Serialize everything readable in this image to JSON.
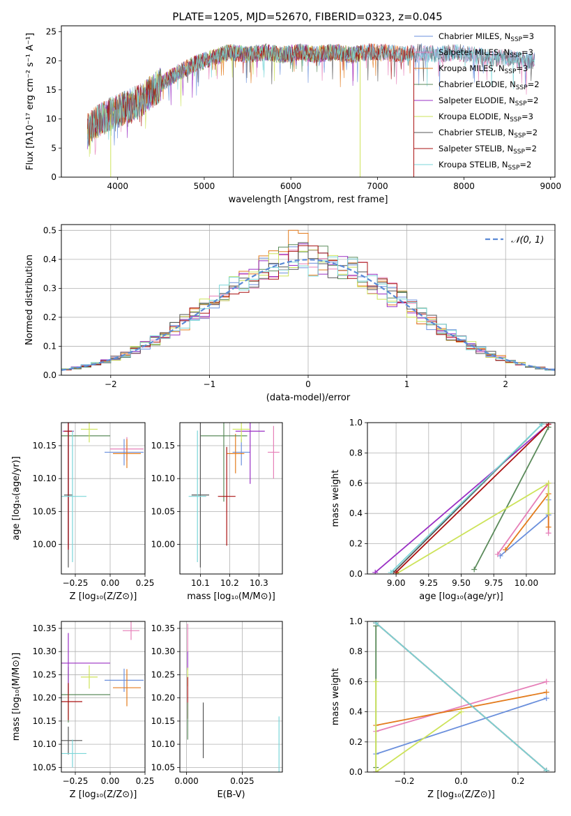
{
  "title": "PLATE=1205, MJD=52670, FIBERID=0323, z=0.045",
  "colors": {
    "chabrier_miles": "#6a8fdc",
    "salpeter_miles": "#e67fb8",
    "kroupa_miles": "#e37b1c",
    "chabrier_elodie": "#5a8a5a",
    "salpeter_elodie": "#9a2fc4",
    "kroupa_elodie": "#cde35a",
    "chabrier_stelib": "#555555",
    "salpeter_stelib": "#aa1111",
    "kroupa_stelib": "#7ad6d8",
    "normal_curve": "#5b8ad6",
    "grid": "#b0b0b0"
  },
  "legend_entries": [
    {
      "base": "Chabrier MILES, N",
      "sub": "SSP",
      "tail": "=3",
      "color_key": "chabrier_miles"
    },
    {
      "base": "Salpeter MILES, N",
      "sub": "SSP",
      "tail": "=3",
      "color_key": "salpeter_miles"
    },
    {
      "base": "Kroupa MILES, N",
      "sub": "SSP",
      "tail": "=3",
      "color_key": "kroupa_miles"
    },
    {
      "base": "Chabrier ELODIE, N",
      "sub": "SSP",
      "tail": "=2",
      "color_key": "chabrier_elodie"
    },
    {
      "base": "Salpeter ELODIE, N",
      "sub": "SSP",
      "tail": "=2",
      "color_key": "salpeter_elodie"
    },
    {
      "base": "Kroupa ELODIE, N",
      "sub": "SSP",
      "tail": "=3",
      "color_key": "kroupa_elodie"
    },
    {
      "base": "Chabrier STELIB, N",
      "sub": "SSP",
      "tail": "=2",
      "color_key": "chabrier_stelib"
    },
    {
      "base": "Salpeter STELIB, N",
      "sub": "SSP",
      "tail": "=2",
      "color_key": "salpeter_stelib"
    },
    {
      "base": "Kroupa STELIB, N",
      "sub": "SSP",
      "tail": "=2",
      "color_key": "kroupa_stelib"
    }
  ],
  "chart_data": [
    {
      "id": "spectrum",
      "type": "line",
      "xlabel": "wavelength [Angstrom, rest frame]",
      "ylabel": "Flux [fλ10⁻¹⁷ erg cm⁻² s⁻¹ A⁻¹]",
      "xlim": [
        3350,
        9050
      ],
      "ylim": [
        0,
        26
      ],
      "xticks": [
        4000,
        5000,
        6000,
        7000,
        8000,
        9000
      ],
      "yticks": [
        0,
        5,
        10,
        15,
        20,
        25
      ],
      "grid": false,
      "legend_position": "upper right",
      "continuum": {
        "x": [
          3650,
          3800,
          3950,
          4100,
          4300,
          4500,
          4700,
          4900,
          5100,
          5300,
          5500,
          5700,
          5900,
          6100,
          6300,
          6500,
          6700,
          6900,
          7100,
          7300,
          7500,
          7700,
          7900,
          8100,
          8300,
          8500,
          8700,
          8820
        ],
        "y": [
          8,
          10,
          11,
          12,
          13.5,
          16,
          18,
          19.5,
          20.5,
          21.5,
          21,
          21.5,
          21,
          21.5,
          21,
          21.5,
          21,
          21.5,
          21.5,
          21,
          21.5,
          21,
          21.5,
          21,
          20.5,
          20.5,
          20,
          20
        ]
      },
      "series_extent": [
        {
          "key": "chabrier_miles",
          "x_end": 8820
        },
        {
          "key": "salpeter_miles",
          "x_end": 8820
        },
        {
          "key": "kroupa_miles",
          "x_end": 7420
        },
        {
          "key": "chabrier_elodie",
          "x_end": 6800
        },
        {
          "key": "salpeter_elodie",
          "x_end": 6800
        },
        {
          "key": "kroupa_elodie",
          "x_end": 6800
        },
        {
          "key": "chabrier_stelib",
          "x_end": 8820
        },
        {
          "key": "salpeter_stelib",
          "x_end": 7420
        },
        {
          "key": "kroupa_stelib",
          "x_end": 8820
        }
      ],
      "dropouts": [
        {
          "x": 5335,
          "key": "chabrier_stelib"
        },
        {
          "x": 6800,
          "key": "kroupa_elodie"
        },
        {
          "x": 7420,
          "key": "salpeter_stelib"
        },
        {
          "x": 3920,
          "key": "kroupa_elodie"
        }
      ]
    },
    {
      "id": "residual_hist",
      "type": "histogram",
      "xlabel": "(data-model)/error",
      "ylabel": "Normed distribution",
      "xlim": [
        -2.5,
        2.5
      ],
      "ylim": [
        0,
        0.52
      ],
      "xticks": [
        -2,
        -1,
        0,
        1,
        2
      ],
      "yticks": [
        0.0,
        0.1,
        0.2,
        0.3,
        0.4,
        0.5
      ],
      "grid": true,
      "legend": "𝒩(0, 1)",
      "legend_position": "upper right",
      "bin_width": 0.1,
      "model_curve": "normal(0,1)",
      "peak_bins": [
        {
          "x": -0.2,
          "key": "kroupa_miles",
          "height": 0.5
        },
        {
          "x": -0.1,
          "key": "kroupa_miles",
          "height": 0.49
        }
      ]
    },
    {
      "id": "age_vs_Z",
      "type": "errorbar",
      "xlabel": "Z [log₁₀(Z/Z⊙)]",
      "ylabel": "age  [log₁₀(age/yr)]",
      "xlim": [
        -0.35,
        0.25
      ],
      "ylim": [
        9.955,
        10.185
      ],
      "xticks": [
        -0.25,
        0.0,
        0.25
      ],
      "yticks": [
        10.0,
        10.05,
        10.1,
        10.15
      ],
      "grid": true,
      "points": [
        {
          "key": "chabrier_miles",
          "x": 0.1,
          "y": 10.14,
          "xerr": 0.14,
          "yerr": 0.02
        },
        {
          "key": "salpeter_miles",
          "x": 0.12,
          "y": 10.145,
          "xerr": 0.12,
          "yerr": 0.018
        },
        {
          "key": "kroupa_miles",
          "x": 0.12,
          "y": 10.138,
          "xerr": 0.1,
          "yerr": 0.022
        },
        {
          "key": "chabrier_elodie",
          "x": -0.3,
          "y": 10.165,
          "xerr": 0.3,
          "yerr": 0.17
        },
        {
          "key": "salpeter_elodie",
          "x": -0.3,
          "y": 10.172,
          "xerr": 0.04,
          "yerr": 0.18
        },
        {
          "key": "kroupa_elodie",
          "x": -0.15,
          "y": 10.175,
          "xerr": 0.06,
          "yerr": 0.02
        },
        {
          "key": "chabrier_stelib",
          "x": -0.3,
          "y": 10.075,
          "xerr": 0.03,
          "yerr": 0.11
        },
        {
          "key": "salpeter_stelib",
          "x": -0.3,
          "y": 10.172,
          "xerr": 0.03,
          "yerr": 0.18
        },
        {
          "key": "kroupa_stelib",
          "x": -0.27,
          "y": 10.073,
          "xerr": 0.1,
          "yerr": 0.1
        }
      ]
    },
    {
      "id": "age_vs_mass",
      "type": "errorbar",
      "xlabel": "mass [log₁₀(M/M⊙)]",
      "ylabel": "",
      "xlim": [
        10.03,
        10.38
      ],
      "ylim": [
        9.955,
        10.185
      ],
      "xticks": [
        10.1,
        10.2,
        10.3
      ],
      "yticks": [
        10.0,
        10.05,
        10.1,
        10.15
      ],
      "grid": true,
      "points": [
        {
          "key": "chabrier_miles",
          "x": 10.24,
          "y": 10.14,
          "xerr": 0.03,
          "yerr": 0.02
        },
        {
          "key": "salpeter_miles",
          "x": 10.35,
          "y": 10.14,
          "xerr": 0.02,
          "yerr": 0.04
        },
        {
          "key": "kroupa_miles",
          "x": 10.22,
          "y": 10.138,
          "xerr": 0.03,
          "yerr": 0.03
        },
        {
          "key": "chabrier_elodie",
          "x": 10.18,
          "y": 10.165,
          "xerr": 0.08,
          "yerr": 0.1
        },
        {
          "key": "salpeter_elodie",
          "x": 10.27,
          "y": 10.172,
          "xerr": 0.05,
          "yerr": 0.08
        },
        {
          "key": "kroupa_elodie",
          "x": 10.24,
          "y": 10.175,
          "xerr": 0.03,
          "yerr": 0.02
        },
        {
          "key": "chabrier_stelib",
          "x": 10.1,
          "y": 10.075,
          "xerr": 0.03,
          "yerr": 0.11
        },
        {
          "key": "salpeter_stelib",
          "x": 10.19,
          "y": 10.073,
          "xerr": 0.03,
          "yerr": 0.075
        },
        {
          "key": "kroupa_stelib",
          "x": 10.09,
          "y": 10.073,
          "xerr": 0.03,
          "yerr": 0.1
        }
      ]
    },
    {
      "id": "massweight_vs_age",
      "type": "line",
      "xlabel": "age  [log₁₀(age/yr)]",
      "ylabel": "mass weight",
      "xlim": [
        8.78,
        10.22
      ],
      "ylim": [
        0,
        1
      ],
      "xticks": [
        9.0,
        9.25,
        9.5,
        9.75,
        10.0
      ],
      "yticks": [
        0.0,
        0.2,
        0.4,
        0.6,
        0.8,
        1.0
      ],
      "grid": true,
      "series": [
        {
          "key": "chabrier_miles",
          "x": [
            9.8,
            10.17,
            10.17
          ],
          "y": [
            0.12,
            0.39,
            0.49
          ]
        },
        {
          "key": "salpeter_miles",
          "x": [
            9.78,
            10.17,
            10.17
          ],
          "y": [
            0.13,
            0.6,
            0.27
          ]
        },
        {
          "key": "kroupa_miles",
          "x": [
            9.84,
            10.17,
            10.17
          ],
          "y": [
            0.16,
            0.53,
            0.31
          ]
        },
        {
          "key": "chabrier_elodie",
          "x": [
            9.6,
            10.17
          ],
          "y": [
            0.03,
            0.97
          ]
        },
        {
          "key": "salpeter_elodie",
          "x": [
            8.84,
            10.17
          ],
          "y": [
            0.01,
            0.99
          ]
        },
        {
          "key": "kroupa_elodie",
          "x": [
            9.0,
            10.17,
            10.17
          ],
          "y": [
            0.0,
            0.6,
            0.4
          ]
        },
        {
          "key": "chabrier_stelib",
          "x": [
            8.98,
            10.12
          ],
          "y": [
            0.01,
            0.99
          ]
        },
        {
          "key": "salpeter_stelib",
          "x": [
            9.0,
            10.17
          ],
          "y": [
            0.01,
            0.99
          ]
        },
        {
          "key": "kroupa_stelib",
          "x": [
            8.96,
            10.12
          ],
          "y": [
            0.01,
            0.99
          ]
        }
      ]
    },
    {
      "id": "mass_vs_Z",
      "type": "errorbar",
      "xlabel": "Z [log₁₀(Z/Z⊙)]",
      "ylabel": "mass [log₁₀(M/M⊙)]",
      "xlim": [
        -0.35,
        0.25
      ],
      "ylim": [
        10.04,
        10.365
      ],
      "xticks": [
        -0.25,
        0.0,
        0.25
      ],
      "yticks": [
        10.05,
        10.1,
        10.15,
        10.2,
        10.25,
        10.3,
        10.35
      ],
      "grid": true,
      "points": [
        {
          "key": "chabrier_miles",
          "x": 0.1,
          "y": 10.238,
          "xerr": 0.14,
          "yerr": 0.025
        },
        {
          "key": "salpeter_miles",
          "x": 0.15,
          "y": 10.345,
          "xerr": 0.06,
          "yerr": 0.02
        },
        {
          "key": "kroupa_miles",
          "x": 0.12,
          "y": 10.222,
          "xerr": 0.1,
          "yerr": 0.04
        },
        {
          "key": "chabrier_elodie",
          "x": -0.3,
          "y": 10.207,
          "xerr": 0.3,
          "yerr": 0.06
        },
        {
          "key": "salpeter_elodie",
          "x": -0.3,
          "y": 10.275,
          "xerr": 0.3,
          "yerr": 0.065
        },
        {
          "key": "kroupa_elodie",
          "x": -0.15,
          "y": 10.245,
          "xerr": 0.06,
          "yerr": 0.025
        },
        {
          "key": "chabrier_stelib",
          "x": -0.3,
          "y": 10.108,
          "xerr": 0.1,
          "yerr": 0.03
        },
        {
          "key": "salpeter_stelib",
          "x": -0.3,
          "y": 10.192,
          "xerr": 0.1,
          "yerr": 0.04
        },
        {
          "key": "kroupa_stelib",
          "x": -0.27,
          "y": 10.08,
          "xerr": 0.1,
          "yerr": 0.03
        }
      ]
    },
    {
      "id": "mass_vs_ebv",
      "type": "errorbar",
      "xlabel": "E(B-V)",
      "ylabel": "",
      "xlim": [
        -0.003,
        0.043
      ],
      "ylim": [
        10.04,
        10.365
      ],
      "xticks": [
        0.0,
        0.025
      ],
      "xtick_labels": [
        "0.000",
        "0.025"
      ],
      "yticks": [
        10.05,
        10.1,
        10.15,
        10.2,
        10.25,
        10.3,
        10.35
      ],
      "grid": true,
      "points": [
        {
          "key": "salpeter_miles",
          "x": 0.0005,
          "y": 10.33,
          "xerr": 0,
          "yerr": 0.03
        },
        {
          "key": "salpeter_elodie",
          "x": 0.0005,
          "y": 10.28,
          "xerr": 0,
          "yerr": 0.02
        },
        {
          "key": "kroupa_elodie",
          "x": 0.0005,
          "y": 10.245,
          "xerr": 0,
          "yerr": 0.02
        },
        {
          "key": "salpeter_stelib",
          "x": 0.0005,
          "y": 10.2,
          "xerr": 0,
          "yerr": 0.045
        },
        {
          "key": "chabrier_stelib",
          "x": 0.0075,
          "y": 10.13,
          "xerr": 0,
          "yerr": 0.06
        },
        {
          "key": "kroupa_stelib",
          "x": 0.0415,
          "y": 10.1,
          "xerr": 0,
          "yerr": 0.06
        },
        {
          "key": "chabrier_elodie",
          "x": 0.0005,
          "y": 10.15,
          "xerr": 0,
          "yerr": 0.04
        }
      ]
    },
    {
      "id": "massweight_vs_Z",
      "type": "line",
      "xlabel": "Z [log₁₀(Z/Z⊙)]",
      "ylabel": "mass weight",
      "xlim": [
        -0.33,
        0.33
      ],
      "ylim": [
        0,
        1
      ],
      "xticks": [
        -0.2,
        0.0,
        0.2
      ],
      "yticks": [
        0.0,
        0.2,
        0.4,
        0.6,
        0.8,
        1.0
      ],
      "grid": true,
      "series": [
        {
          "key": "chabrier_miles",
          "x": [
            -0.3,
            0.3
          ],
          "y": [
            0.12,
            0.49
          ]
        },
        {
          "key": "salpeter_miles",
          "x": [
            -0.3,
            0.3
          ],
          "y": [
            0.27,
            0.6
          ]
        },
        {
          "key": "kroupa_miles",
          "x": [
            -0.3,
            0.3
          ],
          "y": [
            0.31,
            0.53
          ]
        },
        {
          "key": "chabrier_elodie",
          "x": [
            -0.3,
            -0.3
          ],
          "y": [
            0.03,
            0.97
          ]
        },
        {
          "key": "salpeter_elodie",
          "x": [
            -0.3,
            -0.3
          ],
          "y": [
            0.0,
            0.0
          ]
        },
        {
          "key": "kroupa_elodie",
          "x": [
            -0.3,
            -0.3,
            0.0
          ],
          "y": [
            0.6,
            0.0,
            0.4
          ]
        },
        {
          "key": "chabrier_stelib",
          "x": [
            -0.3,
            0.3
          ],
          "y": [
            0.99,
            0.01
          ]
        },
        {
          "key": "salpeter_stelib",
          "x": [
            -0.3,
            0.3
          ],
          "y": [
            0.99,
            0.01
          ]
        },
        {
          "key": "kroupa_stelib",
          "x": [
            -0.3,
            0.3
          ],
          "y": [
            0.99,
            0.01
          ]
        }
      ]
    }
  ]
}
